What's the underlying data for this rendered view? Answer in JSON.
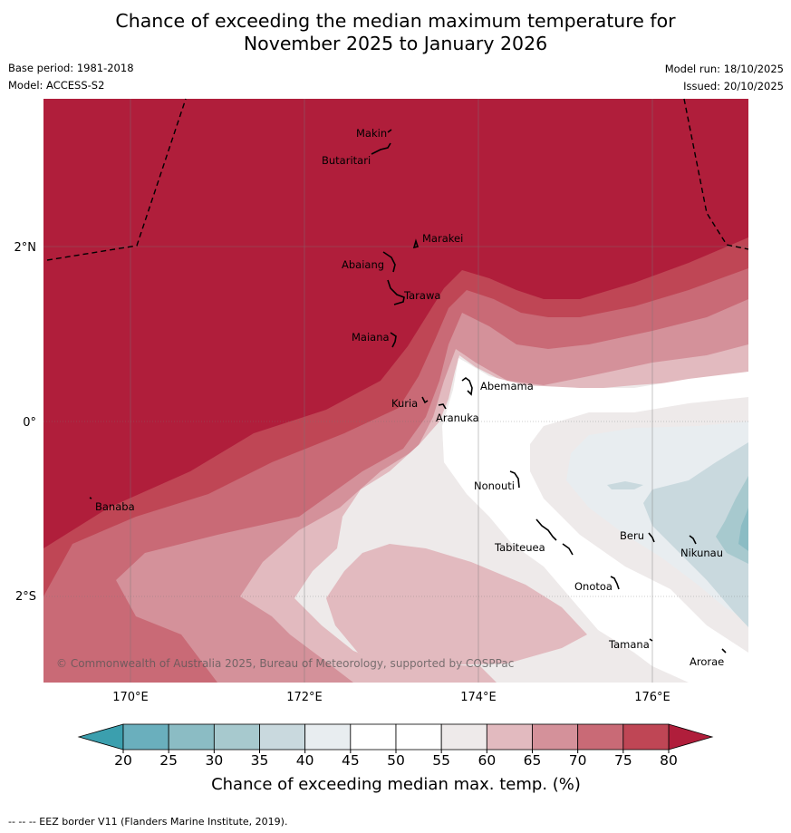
{
  "title_line1": "Chance of exceeding the median maximum temperature for",
  "title_line2": "November 2025 to January 2026",
  "meta": {
    "base_period": "Base period: 1981-2018",
    "model": "Model: ACCESS-S2",
    "model_run": "Model run: 18/10/2025",
    "issued": "Issued: 20/10/2025"
  },
  "map": {
    "lat_labels": [
      "2°N",
      "0°",
      "2°S"
    ],
    "lon_labels": [
      "170°E",
      "172°E",
      "174°E",
      "176°E"
    ],
    "places": [
      "Makin",
      "Butaritari",
      "Marakei",
      "Abaiang",
      "Tarawa",
      "Maiana",
      "Abemama",
      "Kuria",
      "Aranuka",
      "Nonouti",
      "Banaba",
      "Tabiteuea",
      "Beru",
      "Nikunau",
      "Onotoa",
      "Tamana",
      "Arorae"
    ],
    "copyright": "© Commonwealth of Australia 2025, Bureau of Meteorology, supported by COSPPac"
  },
  "colorbar": {
    "ticks": [
      "20",
      "25",
      "30",
      "35",
      "40",
      "45",
      "50",
      "55",
      "60",
      "65",
      "70",
      "75",
      "80"
    ],
    "colors": [
      "#6aafbd",
      "#8bbcc4",
      "#a7c9ce",
      "#c9d9de",
      "#e8edf0",
      "#ffffff",
      "#ffffff",
      "#eeeaea",
      "#e2babf",
      "#d4919a",
      "#c96a76",
      "#bf4655"
    ],
    "under_color": "#3b9fae",
    "over_color": "#b01e3b",
    "label": "Chance of exceeding median max. temp. (%)"
  },
  "footer": "--  --  -- EEZ border V11 (Flanders Marine Institute, 2019)."
}
